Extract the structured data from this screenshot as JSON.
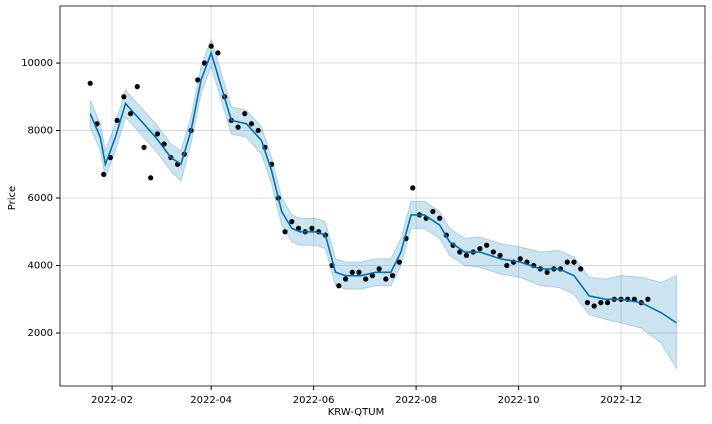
{
  "chart_data": {
    "type": "forecast",
    "x_label": "KRW-QTUM",
    "y_label": "Price",
    "xlim": [
      "2022-01-01",
      "2023-01-20"
    ],
    "xticks": [
      {
        "value": "2022-02-01",
        "label": "2022-02"
      },
      {
        "value": "2022-04-01",
        "label": "2022-04"
      },
      {
        "value": "2022-06-01",
        "label": "2022-06"
      },
      {
        "value": "2022-08-01",
        "label": "2022-08"
      },
      {
        "value": "2022-10-01",
        "label": "2022-10"
      },
      {
        "value": "2022-12-01",
        "label": "2022-12"
      }
    ],
    "ylim": [
      430,
      11690
    ],
    "yticks": [
      2000,
      4000,
      6000,
      8000,
      10000
    ],
    "grid": true,
    "observed": {
      "color": "#000000",
      "x": [
        "2022-01-19",
        "2022-01-23",
        "2022-01-27",
        "2022-01-31",
        "2022-02-04",
        "2022-02-08",
        "2022-02-12",
        "2022-02-16",
        "2022-02-20",
        "2022-02-24",
        "2022-02-28",
        "2022-03-04",
        "2022-03-08",
        "2022-03-12",
        "2022-03-16",
        "2022-03-20",
        "2022-03-24",
        "2022-03-28",
        "2022-04-01",
        "2022-04-05",
        "2022-04-09",
        "2022-04-13",
        "2022-04-17",
        "2022-04-21",
        "2022-04-25",
        "2022-04-29",
        "2022-05-03",
        "2022-05-07",
        "2022-05-11",
        "2022-05-15",
        "2022-05-19",
        "2022-05-23",
        "2022-05-27",
        "2022-05-31",
        "2022-06-04",
        "2022-06-08",
        "2022-06-12",
        "2022-06-16",
        "2022-06-20",
        "2022-06-24",
        "2022-06-28",
        "2022-07-02",
        "2022-07-06",
        "2022-07-10",
        "2022-07-14",
        "2022-07-18",
        "2022-07-22",
        "2022-07-26",
        "2022-07-30",
        "2022-08-03",
        "2022-08-07",
        "2022-08-11",
        "2022-08-15",
        "2022-08-19",
        "2022-08-23",
        "2022-08-27",
        "2022-08-31",
        "2022-09-04",
        "2022-09-08",
        "2022-09-12",
        "2022-09-16",
        "2022-09-20",
        "2022-09-24",
        "2022-09-28",
        "2022-10-02",
        "2022-10-06",
        "2022-10-10",
        "2022-10-14",
        "2022-10-18",
        "2022-10-22",
        "2022-10-26",
        "2022-10-30",
        "2022-11-03",
        "2022-11-07",
        "2022-11-11",
        "2022-11-15",
        "2022-11-19",
        "2022-11-23",
        "2022-11-27",
        "2022-12-01",
        "2022-12-05",
        "2022-12-09",
        "2022-12-13",
        "2022-12-17"
      ],
      "values": [
        9400,
        8200,
        6700,
        7200,
        8300,
        9000,
        8500,
        9300,
        7500,
        6600,
        7900,
        7600,
        7200,
        7000,
        7300,
        8000,
        9500,
        10000,
        10500,
        10300,
        9000,
        8300,
        8100,
        8500,
        8200,
        8000,
        7500,
        7000,
        6000,
        5000,
        5300,
        5100,
        5000,
        5100,
        5000,
        4900,
        4000,
        3400,
        3600,
        3800,
        3800,
        3600,
        3700,
        3900,
        3600,
        3700,
        4100,
        4800,
        6300,
        5500,
        5400,
        5600,
        5400,
        4900,
        4600,
        4400,
        4300,
        4400,
        4500,
        4600,
        4400,
        4300,
        4000,
        4100,
        4200,
        4100,
        4000,
        3900,
        3800,
        3900,
        3900,
        4100,
        4100,
        3900,
        2900,
        2800,
        2900,
        2900,
        3000,
        3000,
        3000,
        3000,
        2900,
        3000
      ]
    },
    "forecast": {
      "color": "#0072B2",
      "x": [
        "2022-01-19",
        "2022-01-25",
        "2022-01-28",
        "2022-02-03",
        "2022-02-09",
        "2022-02-18",
        "2022-02-27",
        "2022-03-08",
        "2022-03-14",
        "2022-03-20",
        "2022-03-26",
        "2022-04-01",
        "2022-04-07",
        "2022-04-13",
        "2022-04-22",
        "2022-05-01",
        "2022-05-07",
        "2022-05-13",
        "2022-05-19",
        "2022-05-24",
        "2022-06-02",
        "2022-06-08",
        "2022-06-14",
        "2022-06-20",
        "2022-06-29",
        "2022-07-08",
        "2022-07-17",
        "2022-07-23",
        "2022-07-29",
        "2022-08-06",
        "2022-08-15",
        "2022-08-21",
        "2022-08-30",
        "2022-09-08",
        "2022-09-20",
        "2022-10-02",
        "2022-10-14",
        "2022-10-25",
        "2022-11-03",
        "2022-11-12",
        "2022-11-22",
        "2022-12-01",
        "2022-12-13",
        "2022-12-25",
        "2023-01-03"
      ],
      "values": [
        8500,
        7800,
        7000,
        7800,
        8800,
        8300,
        7800,
        7200,
        7000,
        8000,
        9500,
        10300,
        9300,
        8300,
        8200,
        7700,
        6800,
        5600,
        5100,
        5000,
        5000,
        4900,
        3800,
        3700,
        3700,
        3800,
        3800,
        4400,
        5500,
        5500,
        5200,
        4700,
        4400,
        4400,
        4200,
        4100,
        3900,
        3900,
        3700,
        3100,
        3000,
        3000,
        2900,
        2600,
        2300
      ],
      "lower": [
        8100,
        7400,
        6600,
        7400,
        8400,
        7900,
        7400,
        6800,
        6500,
        7600,
        9100,
        9900,
        8900,
        7900,
        7800,
        7300,
        6400,
        5200,
        4700,
        4600,
        4600,
        4500,
        3400,
        3300,
        3300,
        3400,
        3400,
        4000,
        5100,
        5100,
        4800,
        4300,
        4000,
        3950,
        3750,
        3650,
        3400,
        3350,
        3150,
        2550,
        2400,
        2300,
        2150,
        1700,
        950
      ],
      "upper": [
        8900,
        8200,
        7400,
        8200,
        9200,
        8700,
        8200,
        7600,
        7400,
        8400,
        9900,
        10700,
        9700,
        8700,
        8600,
        8100,
        7200,
        6000,
        5500,
        5400,
        5400,
        5300,
        4200,
        4100,
        4100,
        4200,
        4200,
        4800,
        5900,
        5900,
        5600,
        5100,
        4800,
        4850,
        4650,
        4550,
        4400,
        4450,
        4250,
        3650,
        3600,
        3700,
        3650,
        3500,
        3700
      ]
    }
  }
}
